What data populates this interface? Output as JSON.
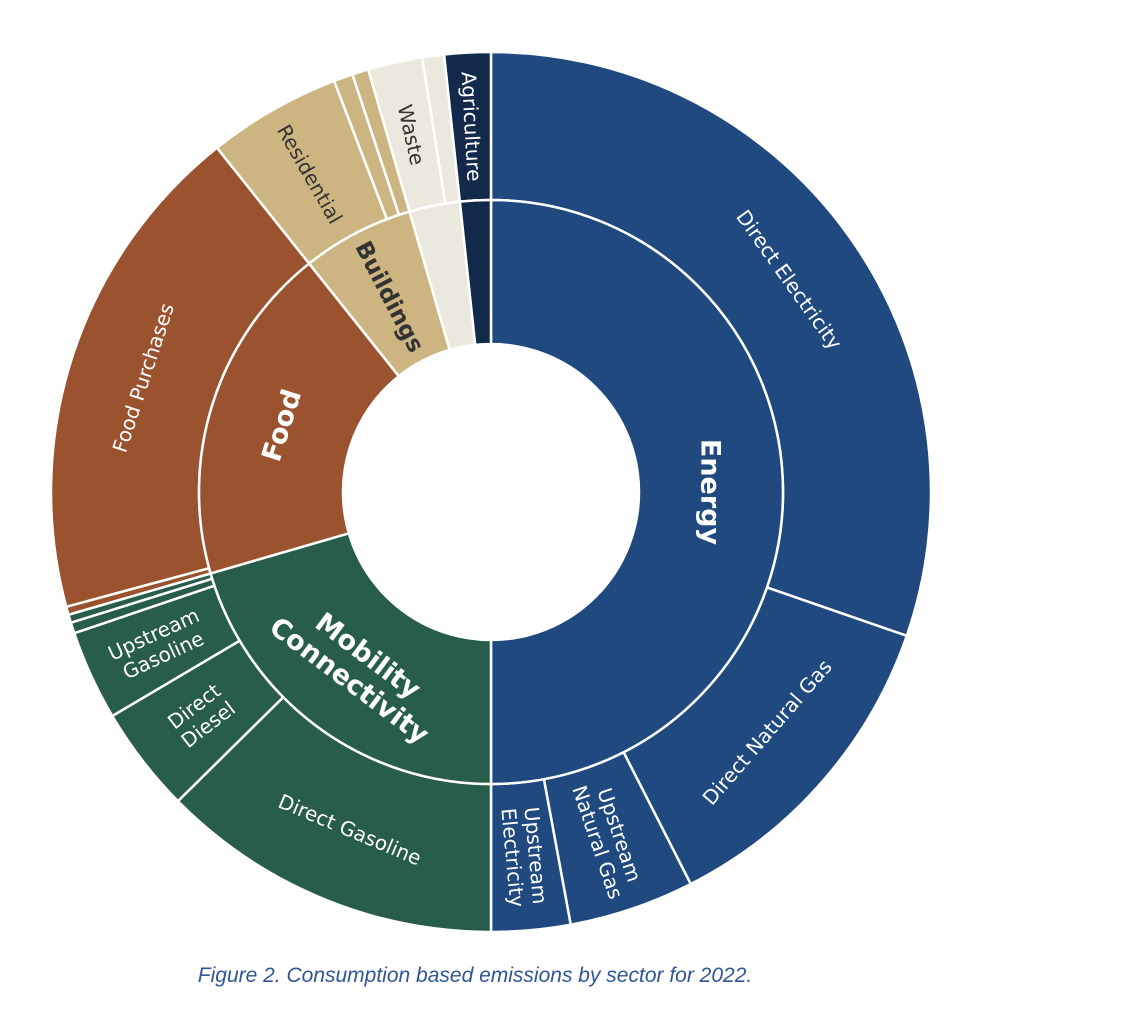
{
  "caption": "Figure 2. Consumption based emissions by sector for 2022.",
  "chart_data": {
    "type": "sunburst",
    "title": "",
    "unit": "percent",
    "colors": {
      "energy": "#204a7f",
      "mobility": "#285c4b",
      "food": "#9a532e",
      "buildings": "#cdb582",
      "waste": "#ebe8de",
      "agriculture": "#13294b"
    },
    "sectors": [
      {
        "name": "Energy",
        "value": 50.0,
        "color_key": "energy",
        "children": [
          {
            "name": "Direct Electricity",
            "value": 30.3
          },
          {
            "name": "Direct Natural Gas",
            "value": 12.2
          },
          {
            "name": "Upstream Natural Gas",
            "value": 4.6
          },
          {
            "name": "Upstream Electricity",
            "value": 2.9
          }
        ]
      },
      {
        "name": "Mobility Connectivity",
        "value": 20.5,
        "color_key": "mobility",
        "children": [
          {
            "name": "Direct Gasoline",
            "value": 12.6
          },
          {
            "name": "Direct Diesel",
            "value": 3.9
          },
          {
            "name": "Upstream Gasoline",
            "value": 3.3
          },
          {
            "name": "",
            "value": 0.4
          },
          {
            "name": "",
            "value": 0.3
          }
        ]
      },
      {
        "name": "Food",
        "value": 18.8,
        "color_key": "food",
        "children": [
          {
            "name": "",
            "value": 0.3
          },
          {
            "name": "Food Purchases",
            "value": 18.5
          }
        ]
      },
      {
        "name": "Buildings",
        "value": 6.2,
        "color_key": "buildings",
        "children": [
          {
            "name": "Residential",
            "value": 4.9
          },
          {
            "name": "",
            "value": 0.7
          },
          {
            "name": "",
            "value": 0.6
          }
        ]
      },
      {
        "name": "Waste",
        "value": 2.8,
        "color_key": "waste",
        "children": [
          {
            "name": "Waste",
            "value": 2.0
          },
          {
            "name": "",
            "value": 0.8
          }
        ]
      },
      {
        "name": "Agriculture",
        "value": 1.7,
        "color_key": "agriculture",
        "children": [
          {
            "name": "Agriculture",
            "value": 1.7
          }
        ]
      }
    ]
  }
}
